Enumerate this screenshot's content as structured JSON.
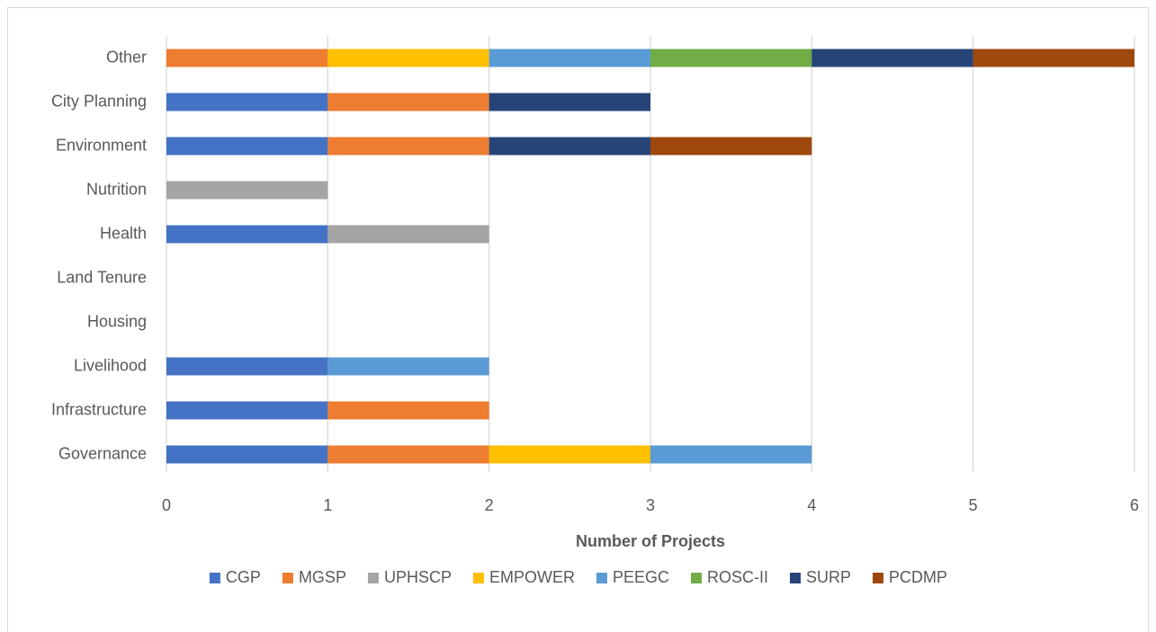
{
  "chart_data": {
    "type": "stacked-bar-horizontal",
    "x_label": "Number of Projects",
    "categories": [
      "Governance",
      "Infrastructure",
      "Livelihood",
      "Housing",
      "Land Tenure",
      "Health",
      "Nutrition",
      "Environment",
      "City Planning",
      "Other"
    ],
    "series": [
      {
        "name": "CGP",
        "color": "#4472c4",
        "values": [
          1,
          1,
          1,
          0,
          0,
          1,
          0,
          1,
          1,
          0
        ]
      },
      {
        "name": "MGSP",
        "color": "#ed7d31",
        "values": [
          1,
          1,
          0,
          0,
          0,
          0,
          0,
          1,
          1,
          1
        ]
      },
      {
        "name": "UPHSCP",
        "color": "#a5a5a5",
        "values": [
          0,
          0,
          0,
          0,
          0,
          1,
          1,
          0,
          0,
          0
        ]
      },
      {
        "name": "EMPOWER",
        "color": "#ffc000",
        "values": [
          1,
          0,
          0,
          0,
          0,
          0,
          0,
          0,
          0,
          1
        ]
      },
      {
        "name": "PEEGC",
        "color": "#5b9bd5",
        "values": [
          1,
          0,
          1,
          0,
          0,
          0,
          0,
          0,
          0,
          1
        ]
      },
      {
        "name": "ROSC-II",
        "color": "#70ad47",
        "values": [
          0,
          0,
          0,
          0,
          0,
          0,
          0,
          0,
          0,
          1
        ]
      },
      {
        "name": "SURP",
        "color": "#264478",
        "values": [
          0,
          0,
          0,
          0,
          0,
          0,
          0,
          1,
          1,
          1
        ]
      },
      {
        "name": "PCDMP",
        "color": "#9e480e",
        "values": [
          0,
          0,
          0,
          0,
          0,
          0,
          0,
          1,
          0,
          1
        ]
      }
    ],
    "xlim": [
      0,
      6
    ],
    "xticks": [
      0,
      1,
      2,
      3,
      4,
      5,
      6
    ],
    "grid": true,
    "legend": "bottom"
  }
}
